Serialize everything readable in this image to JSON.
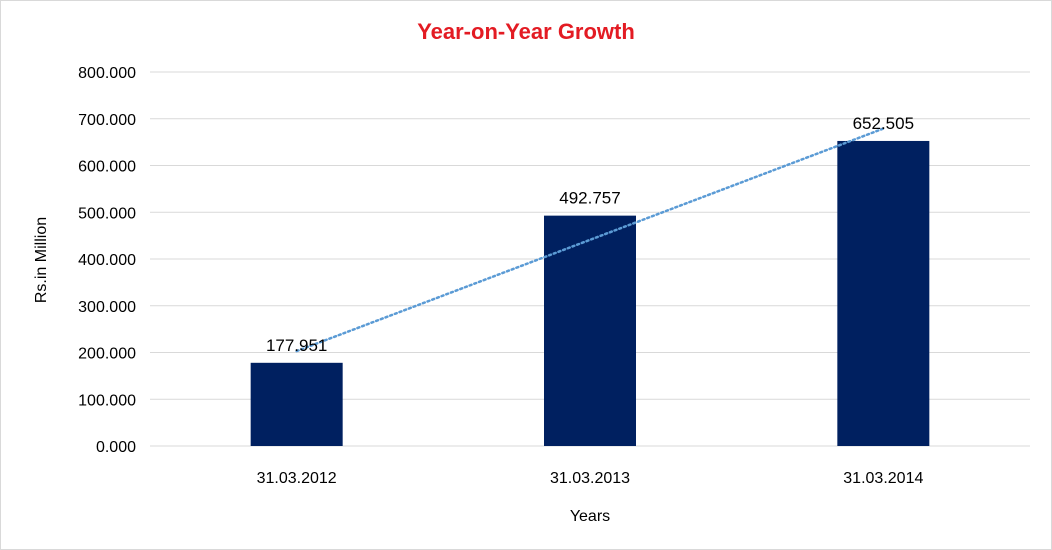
{
  "chart_data": {
    "type": "bar",
    "title": "Year-on-Year Growth",
    "xlabel": "Years",
    "ylabel": "Rs.in Million",
    "categories": [
      "31.03.2012",
      "31.03.2013",
      "31.03.2014"
    ],
    "series": [
      {
        "values": [
          177.951,
          492.757,
          652.505
        ],
        "data_labels": [
          "177.951",
          "492.757",
          "652.505"
        ],
        "color": "#002060"
      }
    ],
    "trendline": {
      "type": "linear",
      "style": "dotted",
      "color": "#5b9bd5",
      "start_value": 203,
      "end_value": 679
    },
    "yticks": [
      {
        "value": 0,
        "label": "0.000"
      },
      {
        "value": 100,
        "label": "100.000"
      },
      {
        "value": 200,
        "label": "200.000"
      },
      {
        "value": 300,
        "label": "300.000"
      },
      {
        "value": 400,
        "label": "400.000"
      },
      {
        "value": 500,
        "label": "500.000"
      },
      {
        "value": 600,
        "label": "600.000"
      },
      {
        "value": 700,
        "label": "700.000"
      },
      {
        "value": 800,
        "label": "800.000"
      }
    ],
    "ylim": [
      0,
      800
    ],
    "grid": true,
    "legend": "none",
    "title_color": "#e31b23",
    "grid_color": "#d9d9d9"
  }
}
